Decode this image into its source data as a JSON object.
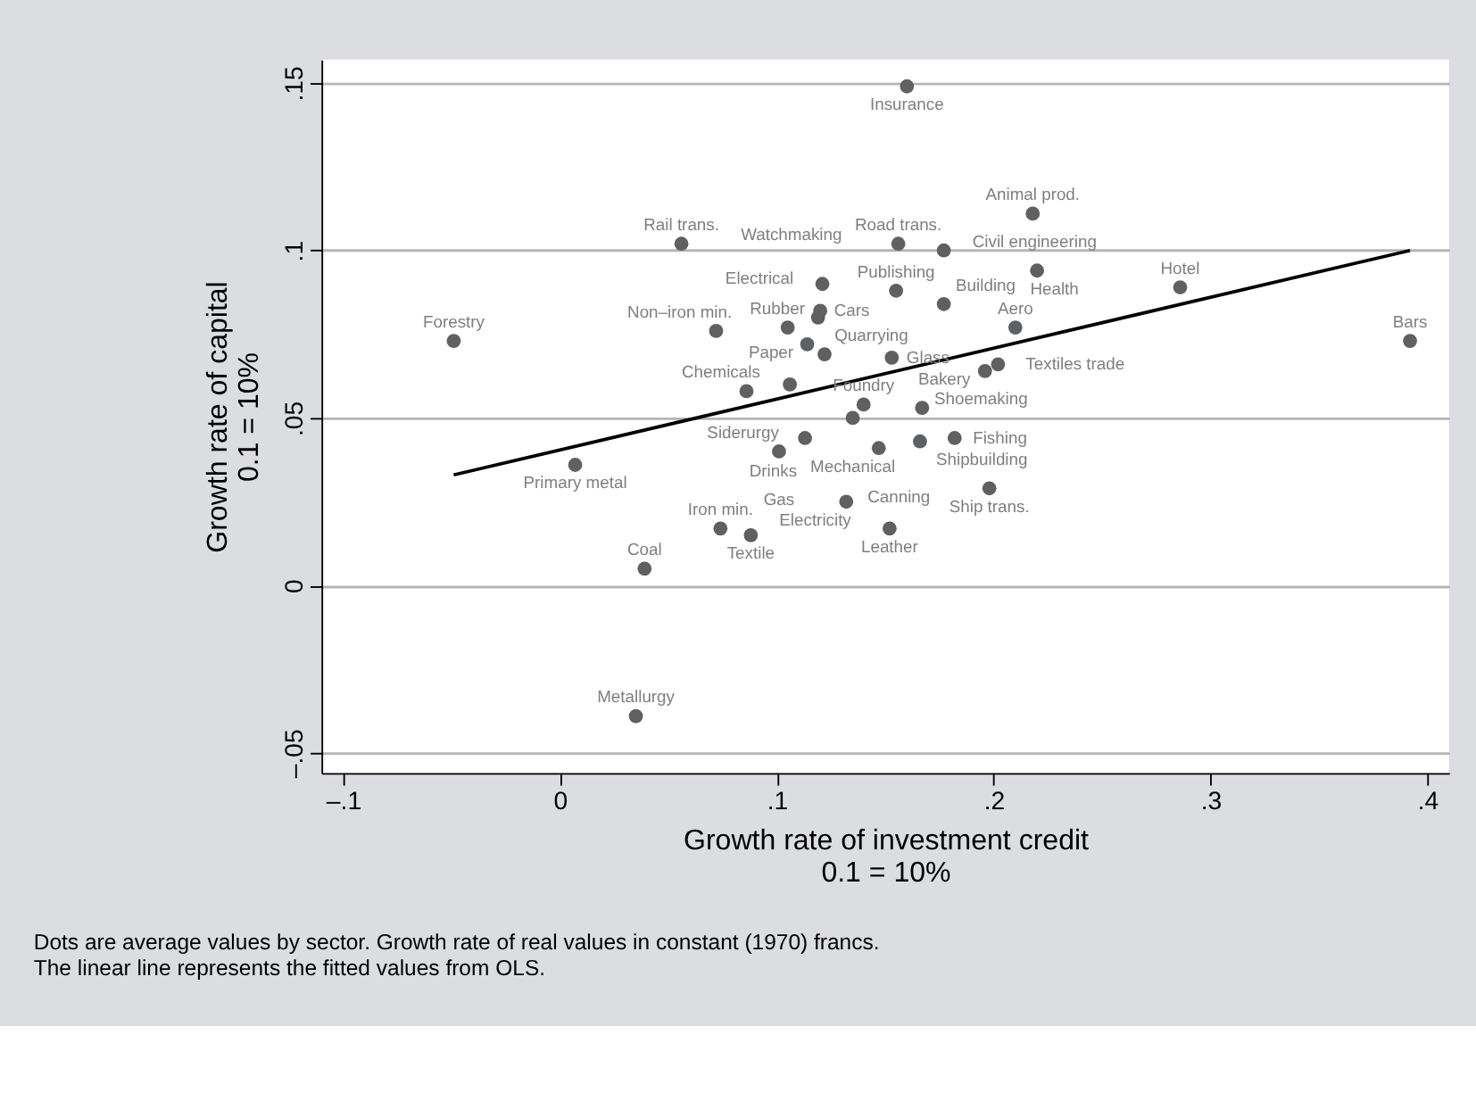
{
  "chart_data": {
    "type": "scatter",
    "xlabel": "Growth rate of investment credit\n0.1 = 10%",
    "ylabel": "Growth rate of capital\n0.1 = 10%",
    "xlim": [
      -0.11,
      0.41
    ],
    "ylim": [
      -0.056,
      0.157
    ],
    "xticks": [
      {
        "value": -0.1,
        "label": "–.1"
      },
      {
        "value": 0,
        "label": "0"
      },
      {
        "value": 0.1,
        "label": ".1"
      },
      {
        "value": 0.2,
        "label": ".2"
      },
      {
        "value": 0.3,
        "label": ".3"
      },
      {
        "value": 0.4,
        "label": ".4"
      }
    ],
    "yticks": [
      {
        "value": -0.05,
        "label": "–.05"
      },
      {
        "value": 0,
        "label": "0"
      },
      {
        "value": 0.05,
        "label": ".05"
      },
      {
        "value": 0.1,
        "label": ".1"
      },
      {
        "value": 0.15,
        "label": ".15"
      }
    ],
    "grid": "y",
    "series": [
      {
        "marker": "circle",
        "color": "#5f6062",
        "x": [
          0.16,
          0.218,
          0.056,
          0.156,
          0.177,
          0.22,
          0.286,
          0.392,
          -0.049,
          0.121,
          0.155,
          0.177,
          0.072,
          0.12,
          0.105,
          0.119,
          0.114,
          0.122,
          0.153,
          0.21,
          0.202,
          0.196,
          0.086,
          0.106,
          0.14,
          0.167,
          0.135,
          0.113,
          0.101,
          0.147,
          0.166,
          0.182,
          0.007,
          0.198,
          0.132,
          0.074,
          0.088,
          0.152,
          0.039,
          0.035
        ],
        "values": [
          0.149,
          0.111,
          0.102,
          0.102,
          0.1,
          0.094,
          0.089,
          0.073,
          0.073,
          0.09,
          0.088,
          0.084,
          0.076,
          0.082,
          0.077,
          0.08,
          0.072,
          0.069,
          0.068,
          0.077,
          0.066,
          0.064,
          0.058,
          0.06,
          0.054,
          0.053,
          0.05,
          0.044,
          0.04,
          0.041,
          0.043,
          0.044,
          0.036,
          0.029,
          0.025,
          0.017,
          0.015,
          0.017,
          0.005,
          -0.039
        ]
      },
      {
        "type": "line",
        "color": "#000000",
        "x": [
          -0.049,
          0.392
        ],
        "values": [
          0.033,
          0.1
        ]
      }
    ],
    "annotations": [
      {
        "text": "Insurance",
        "x": 0.16,
        "y": 0.149
      },
      {
        "text": "Animal prod.",
        "x": 0.218,
        "y": 0.111
      },
      {
        "text": "Rail trans.",
        "x": 0.056,
        "y": 0.102
      },
      {
        "text": "Road trans.",
        "x": 0.156,
        "y": 0.102
      },
      {
        "text": "Civil engineering",
        "x": 0.177,
        "y": 0.1
      },
      {
        "text": "Health",
        "x": 0.22,
        "y": 0.094
      },
      {
        "text": "Hotel",
        "x": 0.286,
        "y": 0.089
      },
      {
        "text": "Bars",
        "x": 0.392,
        "y": 0.073
      },
      {
        "text": "Forestry",
        "x": -0.049,
        "y": 0.073
      },
      {
        "text": "Watchmaking",
        "x": 0.121,
        "y": 0.09
      },
      {
        "text": "Publishing",
        "x": 0.155,
        "y": 0.088
      },
      {
        "text": "Building",
        "x": 0.177,
        "y": 0.084
      },
      {
        "text": "Non–iron min.",
        "x": 0.072,
        "y": 0.076
      },
      {
        "text": "Cars",
        "x": 0.12,
        "y": 0.082
      },
      {
        "text": "Electrical",
        "x": 0.105,
        "y": 0.077
      },
      {
        "text": "Rubber",
        "x": 0.119,
        "y": 0.08
      },
      {
        "text": "Paper",
        "x": 0.114,
        "y": 0.072
      },
      {
        "text": "Quarrying",
        "x": 0.122,
        "y": 0.069
      },
      {
        "text": "Glass",
        "x": 0.153,
        "y": 0.068
      },
      {
        "text": "Aero",
        "x": 0.21,
        "y": 0.077
      },
      {
        "text": "Textiles trade",
        "x": 0.202,
        "y": 0.066
      },
      {
        "text": "Bakery",
        "x": 0.196,
        "y": 0.064
      },
      {
        "text": "Chemicals",
        "x": 0.086,
        "y": 0.058
      },
      {
        "text": "Siderurgy",
        "x": 0.106,
        "y": 0.06
      },
      {
        "text": "Foundry",
        "x": 0.14,
        "y": 0.054
      },
      {
        "text": "Shoemaking",
        "x": 0.167,
        "y": 0.053
      },
      {
        "text": "Mechanical",
        "x": 0.135,
        "y": 0.05
      },
      {
        "text": "Drinks",
        "x": 0.113,
        "y": 0.044
      },
      {
        "text": "Gas",
        "x": 0.101,
        "y": 0.04
      },
      {
        "text": "Canning",
        "x": 0.147,
        "y": 0.041
      },
      {
        "text": "Shipbuilding",
        "x": 0.166,
        "y": 0.043
      },
      {
        "text": "Fishing",
        "x": 0.182,
        "y": 0.044
      },
      {
        "text": "Primary metal",
        "x": 0.007,
        "y": 0.036
      },
      {
        "text": "Ship trans.",
        "x": 0.198,
        "y": 0.029
      },
      {
        "text": "Electricity",
        "x": 0.132,
        "y": 0.025
      },
      {
        "text": "Iron min.",
        "x": 0.074,
        "y": 0.017
      },
      {
        "text": "Textile",
        "x": 0.088,
        "y": 0.015
      },
      {
        "text": "Leather",
        "x": 0.152,
        "y": 0.017
      },
      {
        "text": "Coal",
        "x": 0.039,
        "y": 0.005
      },
      {
        "text": "Metallurgy",
        "x": 0.035,
        "y": -0.039
      },
      "Dots are average values by sector. Growth rate of real values in constant (1970) francs.",
      "The linear line represents the fitted values from OLS."
    ]
  }
}
